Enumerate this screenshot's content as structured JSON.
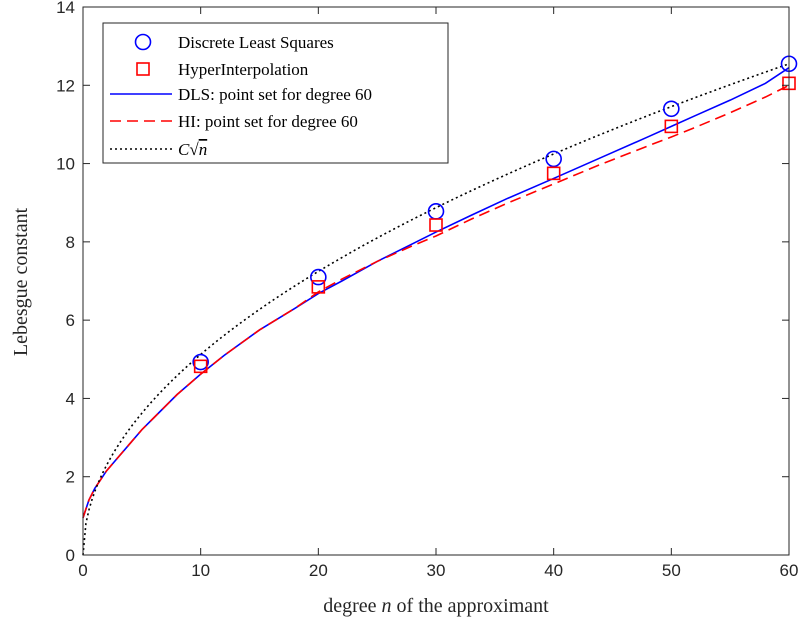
{
  "chart_data": {
    "type": "line",
    "xlabel_parts": [
      "degree ",
      "n",
      " of the approximant"
    ],
    "ylabel": "Lebesgue constant",
    "xlim": [
      0,
      60
    ],
    "ylim": [
      0,
      14
    ],
    "xticks": [
      0,
      10,
      20,
      30,
      40,
      50,
      60
    ],
    "yticks": [
      0,
      2,
      4,
      6,
      8,
      10,
      12,
      14
    ],
    "grid": false,
    "legend_position": "top-left",
    "series": [
      {
        "name": "Discrete Least Squares",
        "style": "markers",
        "marker": "circle",
        "color": "#0000ff",
        "x": [
          10,
          20,
          30,
          40,
          50,
          60
        ],
        "y": [
          4.93,
          7.1,
          8.78,
          10.12,
          11.4,
          12.55
        ]
      },
      {
        "name": "HyperInterpolation",
        "style": "markers",
        "marker": "square",
        "color": "#ff0000",
        "x": [
          10,
          20,
          30,
          40,
          50,
          60
        ],
        "y": [
          4.82,
          6.85,
          8.43,
          9.75,
          10.95,
          12.05
        ]
      },
      {
        "name": "DLS: point set for degree 60",
        "style": "solid",
        "color": "#0000ff",
        "x": [
          0,
          0.5,
          1,
          2,
          3,
          4,
          5,
          6,
          8,
          10,
          12,
          15,
          18,
          20,
          22,
          25,
          28,
          30,
          33,
          36,
          40,
          44,
          48,
          50,
          52,
          55,
          58,
          60
        ],
        "y": [
          0.95,
          1.4,
          1.7,
          2.15,
          2.5,
          2.85,
          3.2,
          3.5,
          4.1,
          4.62,
          5.1,
          5.75,
          6.3,
          6.68,
          7.0,
          7.5,
          7.95,
          8.25,
          8.68,
          9.1,
          9.62,
          10.15,
          10.68,
          10.95,
          11.22,
          11.62,
          12.05,
          12.45
        ]
      },
      {
        "name": "HI: point set for degree 60",
        "style": "dashed",
        "color": "#ff0000",
        "x": [
          0,
          0.5,
          1,
          2,
          3,
          4,
          5,
          6,
          8,
          10,
          12,
          15,
          18,
          20,
          22,
          25,
          28,
          30,
          33,
          36,
          40,
          44,
          48,
          50,
          52,
          55,
          58,
          60
        ],
        "y": [
          0.95,
          1.4,
          1.7,
          2.15,
          2.5,
          2.85,
          3.2,
          3.5,
          4.1,
          4.62,
          5.1,
          5.75,
          6.3,
          6.72,
          7.05,
          7.5,
          7.9,
          8.15,
          8.58,
          8.98,
          9.48,
          9.98,
          10.45,
          10.68,
          10.92,
          11.3,
          11.7,
          12.0
        ]
      },
      {
        "name_parts": [
          "C",
          "√",
          "n"
        ],
        "style": "dotted",
        "color": "#000000",
        "function": "1.62*sqrt(x)",
        "x_range": [
          0,
          60
        ]
      }
    ]
  }
}
